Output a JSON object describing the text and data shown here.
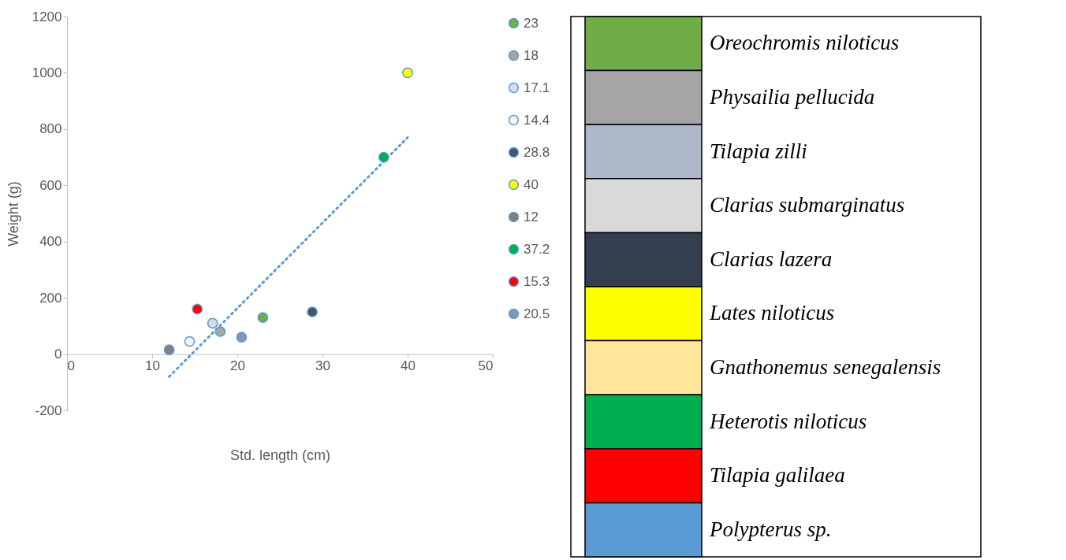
{
  "chart_data": [
    {
      "type": "scatter",
      "xlabel": "Std. length (cm)",
      "ylabel": "Weight (g)",
      "xlim": [
        0,
        50
      ],
      "xticks": [
        0,
        10,
        20,
        30,
        40,
        50
      ],
      "ylim": [
        -200,
        1200
      ],
      "yticks": [
        {
          "value": -200,
          "label": "-200"
        },
        0,
        200,
        400,
        600,
        800,
        1000,
        1200
      ],
      "grid": false,
      "legend": "right",
      "marker": "circle",
      "series": [
        {
          "name": "23",
          "color": "#70ad47",
          "x": [
            23
          ],
          "values": [
            130
          ]
        },
        {
          "name": "18",
          "color": "#a5a5a5",
          "x": [
            18
          ],
          "values": [
            80
          ]
        },
        {
          "name": "17.1",
          "color": "#d6dce5",
          "x": [
            17.1
          ],
          "values": [
            110
          ]
        },
        {
          "name": "14.4",
          "color": "#f2f2f2",
          "x": [
            14.4
          ],
          "values": [
            45
          ]
        },
        {
          "name": "28.8",
          "color": "#44546a",
          "x": [
            28.8
          ],
          "values": [
            150
          ]
        },
        {
          "name": "40",
          "color": "#ffff00",
          "x": [
            40
          ],
          "values": [
            1000
          ]
        },
        {
          "name": "12",
          "color": "#7f7f7f",
          "x": [
            12
          ],
          "values": [
            15
          ]
        },
        {
          "name": "37.2",
          "color": "#00b050",
          "x": [
            37.2
          ],
          "values": [
            700
          ]
        },
        {
          "name": "15.3",
          "color": "#ff0000",
          "x": [
            15.3
          ],
          "values": [
            160
          ]
        },
        {
          "name": "20.5",
          "color": "#8497b0",
          "x": [
            20.5
          ],
          "values": [
            60
          ]
        },
        {
          "type": "line",
          "color": "#5b9bd5",
          "line_style": "dotted",
          "marker": "none",
          "x": [
            12,
            40
          ],
          "values": [
            -80,
            770
          ]
        }
      ]
    },
    {
      "type": "other",
      "categories": [
        "Oreochromis niloticus",
        "Physailia pellucida",
        "Tilapia zilli",
        "Clarias submarginatus",
        "Clarias lazera",
        "Lates niloticus",
        "Gnathonemus senegalensis",
        "Heterotis niloticus",
        "Tilapia galilaea",
        "Polypterus sp."
      ],
      "colors": [
        "#70ad47",
        "#a5a5a5",
        "#adb9ca",
        "#d9d9d9",
        "#333f50",
        "#ffff00",
        "#ffe699",
        "#00b050",
        "#ff0000",
        "#5b9bd5"
      ]
    }
  ]
}
